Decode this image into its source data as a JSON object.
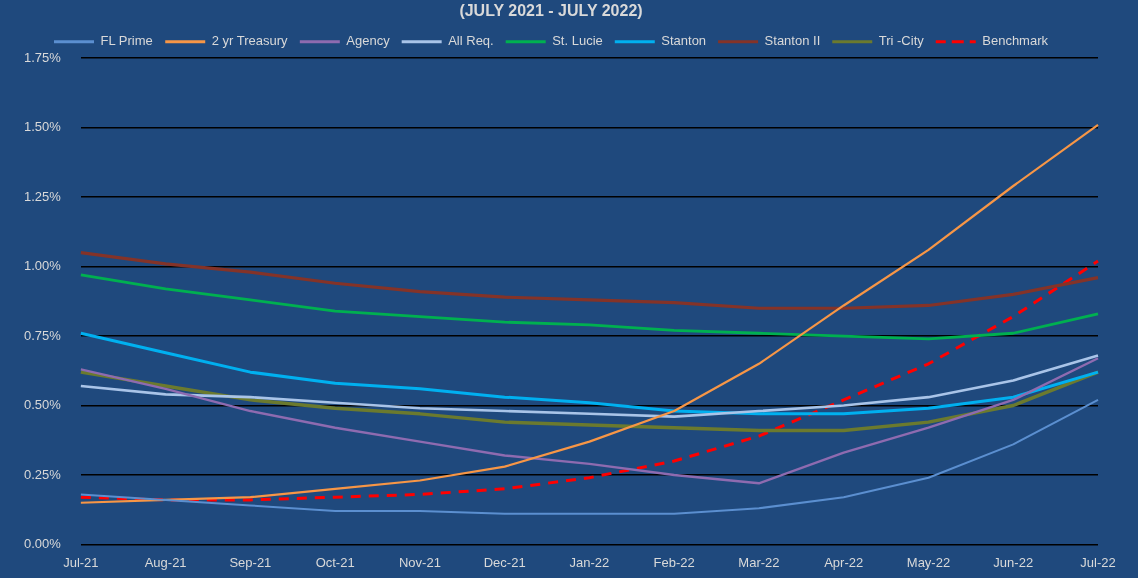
{
  "chart_data": {
    "type": "line",
    "title": "(JULY 2021 - JULY 2022)",
    "categories": [
      "Jul-21",
      "Aug-21",
      "Sep-21",
      "Oct-21",
      "Nov-21",
      "Dec-21",
      "Jan-22",
      "Feb-22",
      "Mar-22",
      "Apr-22",
      "May-22",
      "Jun-22",
      "Jul-22"
    ],
    "series": [
      {
        "name": "FL Prime",
        "color": "#5b8fd0",
        "values": [
          0.18,
          0.16,
          0.14,
          0.12,
          0.12,
          0.11,
          0.11,
          0.11,
          0.13,
          0.17,
          0.24,
          0.36,
          0.52
        ]
      },
      {
        "name": "2 yr Treasury",
        "color": "#f79646",
        "values": [
          0.15,
          0.16,
          0.17,
          0.2,
          0.23,
          0.28,
          0.37,
          0.48,
          0.65,
          0.86,
          1.06,
          1.29,
          1.51
        ]
      },
      {
        "name": "Agency",
        "color": "#8e6bb0",
        "values": [
          0.63,
          0.56,
          0.48,
          0.42,
          0.37,
          0.32,
          0.29,
          0.25,
          0.22,
          0.33,
          0.42,
          0.52,
          0.67
        ]
      },
      {
        "name": "All Req.",
        "color": "#a9c4e8",
        "values": [
          0.57,
          0.54,
          0.53,
          0.51,
          0.49,
          0.48,
          0.47,
          0.46,
          0.48,
          0.5,
          0.53,
          0.59,
          0.68
        ]
      },
      {
        "name": "St. Lucie",
        "color": "#00b050",
        "values": [
          0.97,
          0.92,
          0.88,
          0.84,
          0.82,
          0.8,
          0.79,
          0.77,
          0.76,
          0.75,
          0.74,
          0.76,
          0.83
        ]
      },
      {
        "name": "Stanton",
        "color": "#00b0f0",
        "values": [
          0.76,
          0.69,
          0.62,
          0.58,
          0.56,
          0.53,
          0.51,
          0.48,
          0.47,
          0.47,
          0.49,
          0.53,
          0.62
        ]
      },
      {
        "name": "Stanton II",
        "color": "#843328",
        "values": [
          1.05,
          1.01,
          0.98,
          0.94,
          0.91,
          0.89,
          0.88,
          0.87,
          0.85,
          0.85,
          0.86,
          0.9,
          0.96
        ]
      },
      {
        "name": "Tri -City",
        "color": "#6b7a2e",
        "values": [
          0.62,
          0.57,
          0.52,
          0.49,
          0.47,
          0.44,
          0.43,
          0.42,
          0.41,
          0.41,
          0.44,
          0.5,
          0.62
        ]
      },
      {
        "name": "Benchmark",
        "color": "#ff0000",
        "line_style": "dashed",
        "values": [
          0.17,
          0.16,
          0.16,
          0.17,
          0.18,
          0.2,
          0.24,
          0.3,
          0.39,
          0.52,
          0.65,
          0.82,
          1.02
        ]
      }
    ],
    "ylim": [
      0,
      1.75
    ],
    "yticks": [
      {
        "value": 0,
        "label": "0.00%"
      },
      {
        "value": 0.25,
        "label": "0.25%"
      },
      {
        "value": 0.5,
        "label": "0.50%"
      },
      {
        "value": 0.75,
        "label": "0.75%"
      },
      {
        "value": 1,
        "label": "1.00%"
      },
      {
        "value": 1.25,
        "label": "1.25%"
      },
      {
        "value": 1.5,
        "label": "1.50%"
      },
      {
        "value": 1.75,
        "label": "1.75%"
      }
    ],
    "grid": "y",
    "legend": "top",
    "marker": "none"
  }
}
